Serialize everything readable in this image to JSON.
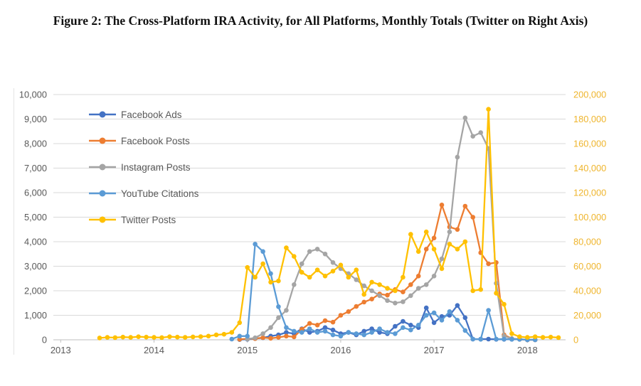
{
  "figure": {
    "title": "Figure 2: The Cross-Platform IRA Activity, for All Platforms, Monthly Totals (Twitter on Right Axis)"
  },
  "chart_data": {
    "type": "line",
    "title": "Figure 2: The Cross-Platform IRA Activity, for All Platforms, Monthly Totals (Twitter on Right Axis)",
    "legend_position": "top-left-inside",
    "grid": true,
    "grid_color": "#D9D9D9",
    "axis_line_color": "#BFBFBF",
    "months": [
      "2013-06",
      "2013-07",
      "2013-08",
      "2013-09",
      "2013-10",
      "2013-11",
      "2013-12",
      "2014-01",
      "2014-02",
      "2014-03",
      "2014-04",
      "2014-05",
      "2014-06",
      "2014-07",
      "2014-08",
      "2014-09",
      "2014-10",
      "2014-11",
      "2014-12",
      "2015-01",
      "2015-02",
      "2015-03",
      "2015-04",
      "2015-05",
      "2015-06",
      "2015-07",
      "2015-08",
      "2015-09",
      "2015-10",
      "2015-11",
      "2015-12",
      "2016-01",
      "2016-02",
      "2016-03",
      "2016-04",
      "2016-05",
      "2016-06",
      "2016-07",
      "2016-08",
      "2016-09",
      "2016-10",
      "2016-11",
      "2016-12",
      "2017-01",
      "2017-02",
      "2017-03",
      "2017-04",
      "2017-05",
      "2017-06",
      "2017-07",
      "2017-08",
      "2017-09",
      "2017-10",
      "2017-11",
      "2017-12",
      "2018-01",
      "2018-02",
      "2018-03",
      "2018-04",
      "2018-05"
    ],
    "left_axis": {
      "min": 0,
      "max": 10000,
      "tick_labels": [
        "0",
        "1,000",
        "2,000",
        "3,000",
        "4,000",
        "5,000",
        "6,000",
        "7,000",
        "8,000",
        "9,000",
        "10,000"
      ],
      "text_color": "#595959"
    },
    "right_axis": {
      "min": 0,
      "max": 200000,
      "tick_labels": [
        "0",
        "20,000",
        "40,000",
        "60,000",
        "80,000",
        "100,000",
        "120,000",
        "140,000",
        "160,000",
        "180,000",
        "200,000"
      ],
      "text_color": "#EFB52D"
    },
    "x_axis": {
      "year_labels": [
        "2013",
        "2014",
        "2015",
        "2016",
        "2017",
        "2018"
      ],
      "text_color": "#595959"
    },
    "series": [
      {
        "id": "facebook-ads",
        "name": "Facebook Ads",
        "axis": "left",
        "color": "#4472C4",
        "values": [
          null,
          null,
          null,
          null,
          null,
          null,
          null,
          null,
          null,
          null,
          null,
          null,
          null,
          null,
          null,
          null,
          null,
          null,
          10,
          20,
          50,
          80,
          150,
          200,
          300,
          250,
          450,
          300,
          350,
          500,
          400,
          250,
          300,
          200,
          350,
          450,
          300,
          250,
          550,
          750,
          600,
          500,
          1300,
          700,
          950,
          1000,
          1400,
          900,
          30,
          30,
          30,
          20,
          20,
          20,
          20,
          0,
          0,
          null,
          null,
          null
        ]
      },
      {
        "id": "facebook-posts",
        "name": "Facebook Posts",
        "axis": "left",
        "color": "#ED7D31",
        "values": [
          null,
          null,
          null,
          null,
          null,
          null,
          null,
          null,
          null,
          null,
          null,
          null,
          null,
          null,
          null,
          null,
          null,
          null,
          20,
          40,
          50,
          90,
          60,
          100,
          150,
          120,
          430,
          670,
          600,
          780,
          720,
          1000,
          1150,
          1360,
          1540,
          1660,
          1870,
          1820,
          2050,
          1950,
          2250,
          2600,
          3700,
          4150,
          5500,
          4600,
          4500,
          5450,
          5000,
          3550,
          3100,
          3150,
          200,
          50,
          20,
          0,
          0,
          null,
          null,
          null
        ]
      },
      {
        "id": "instagram-posts",
        "name": "Instagram Posts",
        "axis": "left",
        "color": "#A5A5A5",
        "values": [
          null,
          null,
          null,
          null,
          null,
          null,
          null,
          null,
          null,
          null,
          null,
          null,
          null,
          null,
          null,
          null,
          null,
          null,
          null,
          30,
          80,
          250,
          500,
          900,
          1200,
          2250,
          3100,
          3600,
          3700,
          3500,
          3150,
          2900,
          2700,
          2450,
          2200,
          2000,
          1800,
          1600,
          1500,
          1550,
          1800,
          2100,
          2250,
          2600,
          3300,
          4400,
          7450,
          9050,
          8300,
          8450,
          7800,
          2300,
          150,
          50,
          20,
          null,
          null,
          null,
          null,
          null
        ]
      },
      {
        "id": "youtube-citations",
        "name": "YouTube Citations",
        "axis": "left",
        "color": "#5B9BD5",
        "values": [
          null,
          null,
          null,
          null,
          null,
          null,
          null,
          null,
          null,
          null,
          null,
          null,
          null,
          null,
          null,
          null,
          null,
          30,
          150,
          150,
          3900,
          3600,
          2700,
          1350,
          500,
          350,
          300,
          450,
          300,
          350,
          200,
          150,
          300,
          250,
          200,
          300,
          450,
          300,
          250,
          500,
          400,
          600,
          1000,
          1100,
          800,
          1150,
          800,
          380,
          30,
          20,
          1200,
          30,
          30,
          20,
          20,
          0,
          0,
          null,
          null,
          null
        ]
      },
      {
        "id": "twitter-posts",
        "name": "Twitter Posts",
        "axis": "right",
        "color": "#FFC000",
        "values": [
          1500,
          2000,
          1800,
          2200,
          2000,
          2500,
          2200,
          2000,
          1800,
          2500,
          2200,
          2000,
          2400,
          2600,
          3000,
          4000,
          4500,
          6000,
          14000,
          59000,
          51000,
          62000,
          47000,
          48000,
          75000,
          68000,
          55000,
          51000,
          57000,
          52000,
          56000,
          61000,
          51000,
          57000,
          37000,
          47000,
          45000,
          42000,
          40000,
          51000,
          86000,
          72000,
          88000,
          74000,
          58000,
          78000,
          74000,
          80000,
          40000,
          41000,
          188000,
          38000,
          29000,
          5000,
          2500,
          2000,
          2500,
          2000,
          2200,
          1800
        ]
      }
    ]
  }
}
